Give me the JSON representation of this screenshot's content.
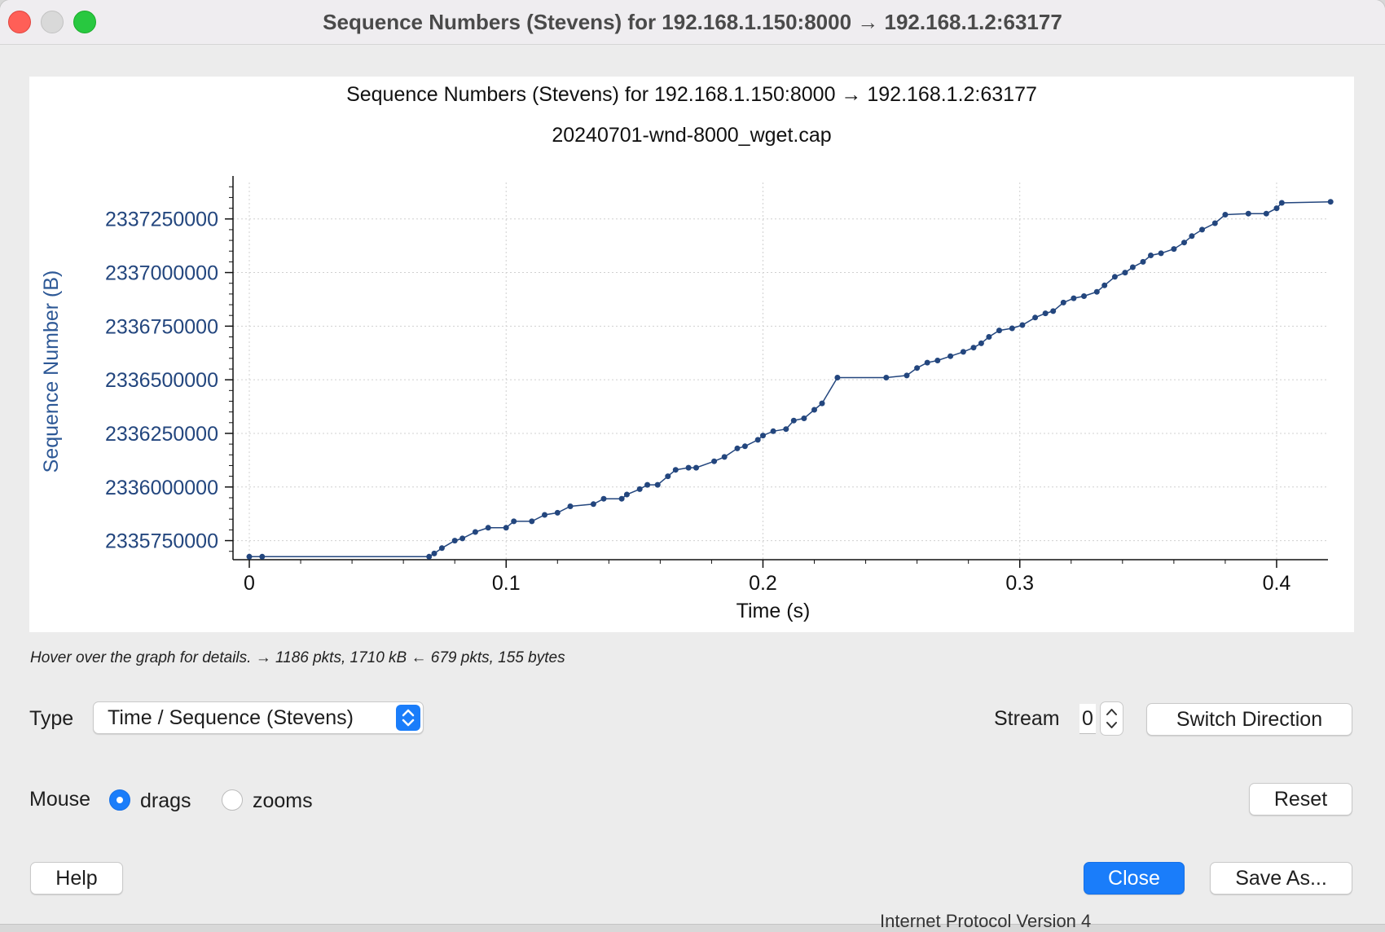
{
  "window": {
    "title": "Sequence Numbers (Stevens) for 192.168.1.150:8000 → 192.168.1.2:63177"
  },
  "chart_data": {
    "type": "scatter",
    "title": "Sequence Numbers (Stevens) for 192.168.1.150:8000 → 192.168.1.2:63177",
    "subtitle": "20240701-wnd-8000_wget.cap",
    "xlabel": "Time (s)",
    "ylabel": "Sequence Number (B)",
    "xlim": [
      0,
      0.42
    ],
    "ylim": [
      2335680000,
      2337420000
    ],
    "x_ticks": [
      "0",
      "0.1",
      "0.2",
      "0.3",
      "0.4"
    ],
    "y_ticks": [
      "2335750000",
      "2336000000",
      "2336250000",
      "2336500000",
      "2336750000",
      "2337000000",
      "2337250000"
    ],
    "grid": true,
    "color": "#23467e",
    "series": [
      {
        "x": [
          0.0,
          0.005,
          0.07,
          0.072,
          0.075,
          0.08,
          0.083,
          0.088,
          0.093,
          0.1,
          0.103,
          0.11,
          0.115,
          0.12,
          0.125,
          0.134,
          0.138,
          0.145,
          0.147,
          0.152,
          0.155,
          0.159,
          0.163,
          0.166,
          0.171,
          0.174,
          0.181,
          0.185,
          0.19,
          0.193,
          0.198,
          0.2,
          0.204,
          0.209,
          0.212,
          0.216,
          0.22,
          0.223,
          0.229,
          0.248,
          0.256,
          0.26,
          0.264,
          0.268,
          0.273,
          0.278,
          0.282,
          0.285,
          0.288,
          0.292,
          0.297,
          0.301,
          0.306,
          0.31,
          0.313,
          0.317,
          0.321,
          0.325,
          0.33,
          0.333,
          0.337,
          0.341,
          0.344,
          0.348,
          0.351,
          0.355,
          0.36,
          0.364,
          0.367,
          0.371,
          0.376,
          0.38,
          0.389,
          0.396,
          0.4,
          0.402,
          0.421
        ],
        "y": [
          2335675000,
          2335675000,
          2335675000,
          2335690000,
          2335715000,
          2335750000,
          2335760000,
          2335790000,
          2335810000,
          2335810000,
          2335840000,
          2335840000,
          2335870000,
          2335880000,
          2335910000,
          2335920000,
          2335945000,
          2335945000,
          2335965000,
          2335990000,
          2336010000,
          2336010000,
          2336050000,
          2336080000,
          2336090000,
          2336090000,
          2336120000,
          2336140000,
          2336180000,
          2336190000,
          2336220000,
          2336240000,
          2336260000,
          2336270000,
          2336310000,
          2336320000,
          2336360000,
          2336390000,
          2336510000,
          2336510000,
          2336520000,
          2336555000,
          2336580000,
          2336590000,
          2336610000,
          2336630000,
          2336650000,
          2336670000,
          2336700000,
          2336730000,
          2336740000,
          2336755000,
          2336790000,
          2336810000,
          2336820000,
          2336860000,
          2336880000,
          2336890000,
          2336910000,
          2336940000,
          2336980000,
          2337000000,
          2337025000,
          2337050000,
          2337080000,
          2337090000,
          2337110000,
          2337140000,
          2337170000,
          2337200000,
          2337230000,
          2337270000,
          2337275000,
          2337275000,
          2337300000,
          2337325000,
          2337330000
        ]
      }
    ]
  },
  "status": {
    "text": "Hover over the graph for details. → 1186 pkts, 1710 kB ← 679 pkts, 155 bytes"
  },
  "controls": {
    "type_label": "Type",
    "type_value": "Time / Sequence (Stevens)",
    "stream_label": "Stream",
    "stream_value": "0",
    "switch_direction_label": "Switch Direction",
    "mouse_label": "Mouse",
    "mouse_options": [
      {
        "label": "drags",
        "checked": true
      },
      {
        "label": "zooms",
        "checked": false
      }
    ],
    "reset_label": "Reset",
    "help_label": "Help",
    "close_label": "Close",
    "save_as_label": "Save As..."
  },
  "behind_window": {
    "text": "Internet Protocol Version 4"
  }
}
